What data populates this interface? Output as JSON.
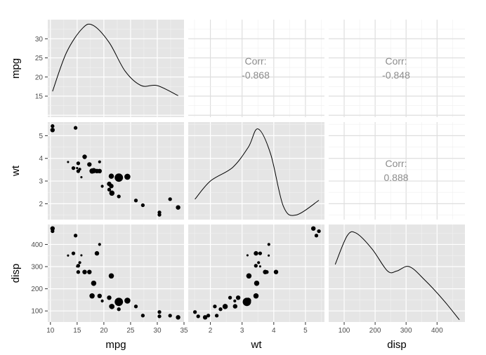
{
  "variables": [
    "mpg",
    "wt",
    "disp"
  ],
  "chart_data": {
    "type": "scatter",
    "variables": [
      {
        "name": "mpg",
        "range": [
          9.5,
          35
        ],
        "ticks": [
          10,
          15,
          20,
          25,
          30,
          35
        ],
        "ytick_labels": [
          15,
          20,
          25,
          30
        ]
      },
      {
        "name": "wt",
        "range": [
          1.3,
          5.6
        ],
        "ticks": [
          2,
          3,
          4,
          5
        ]
      },
      {
        "name": "disp",
        "range": [
          50,
          490
        ],
        "ticks": [
          100,
          200,
          300,
          400
        ]
      }
    ],
    "density": {
      "mpg": {
        "x": [
          10.4,
          13,
          16,
          18,
          21,
          24,
          27,
          30,
          33.9
        ],
        "y": [
          0.018,
          0.045,
          0.062,
          0.064,
          0.052,
          0.032,
          0.022,
          0.022,
          0.015
        ],
        "yrange": [
          0.0,
          0.068
        ]
      },
      "wt": {
        "x": [
          1.513,
          2,
          2.7,
          3.2,
          3.5,
          3.9,
          4.3,
          4.7,
          5.424
        ],
        "y": [
          0.09,
          0.17,
          0.23,
          0.32,
          0.4,
          0.29,
          0.06,
          0.02,
          0.085
        ],
        "yrange": [
          0.0,
          0.43
        ]
      },
      "disp": {
        "x": [
          71.1,
          110,
          140,
          190,
          240,
          270,
          310,
          360,
          420,
          472
        ],
        "y": [
          0.0026,
          0.0039,
          0.004,
          0.0033,
          0.0023,
          0.0023,
          0.0025,
          0.0019,
          0.001,
          0.0001
        ],
        "yrange": [
          0.0,
          0.0044
        ]
      }
    },
    "correlations": [
      {
        "pair": [
          "mpg",
          "wt"
        ],
        "label": "Corr:",
        "value": "-0.868"
      },
      {
        "pair": [
          "mpg",
          "disp"
        ],
        "label": "Corr:",
        "value": "-0.848"
      },
      {
        "pair": [
          "wt",
          "disp"
        ],
        "label": "Corr:",
        "value": "0.888"
      }
    ],
    "points": [
      {
        "mpg": 21.0,
        "wt": 2.62,
        "disp": 160.0
      },
      {
        "mpg": 21.0,
        "wt": 2.875,
        "disp": 160.0
      },
      {
        "mpg": 22.8,
        "wt": 2.32,
        "disp": 108.0
      },
      {
        "mpg": 21.4,
        "wt": 3.215,
        "disp": 258.0
      },
      {
        "mpg": 18.7,
        "wt": 3.44,
        "disp": 360.0
      },
      {
        "mpg": 18.1,
        "wt": 3.46,
        "disp": 225.0
      },
      {
        "mpg": 14.3,
        "wt": 3.57,
        "disp": 360.0
      },
      {
        "mpg": 24.4,
        "wt": 3.19,
        "disp": 146.7
      },
      {
        "mpg": 22.8,
        "wt": 3.15,
        "disp": 140.8
      },
      {
        "mpg": 19.2,
        "wt": 3.44,
        "disp": 167.6
      },
      {
        "mpg": 17.8,
        "wt": 3.44,
        "disp": 167.6
      },
      {
        "mpg": 16.4,
        "wt": 4.07,
        "disp": 275.8
      },
      {
        "mpg": 17.3,
        "wt": 3.73,
        "disp": 275.8
      },
      {
        "mpg": 15.2,
        "wt": 3.78,
        "disp": 275.8
      },
      {
        "mpg": 10.4,
        "wt": 5.25,
        "disp": 472.0
      },
      {
        "mpg": 10.4,
        "wt": 5.424,
        "disp": 460.0
      },
      {
        "mpg": 14.7,
        "wt": 5.345,
        "disp": 440.0
      },
      {
        "mpg": 32.4,
        "wt": 2.2,
        "disp": 78.7
      },
      {
        "mpg": 30.4,
        "wt": 1.615,
        "disp": 75.7
      },
      {
        "mpg": 33.9,
        "wt": 1.835,
        "disp": 71.1
      },
      {
        "mpg": 21.5,
        "wt": 2.465,
        "disp": 120.1
      },
      {
        "mpg": 15.5,
        "wt": 3.52,
        "disp": 318.0
      },
      {
        "mpg": 15.2,
        "wt": 3.435,
        "disp": 304.0
      },
      {
        "mpg": 13.3,
        "wt": 3.84,
        "disp": 350.0
      },
      {
        "mpg": 19.2,
        "wt": 3.845,
        "disp": 400.0
      },
      {
        "mpg": 27.3,
        "wt": 1.935,
        "disp": 79.0
      },
      {
        "mpg": 26.0,
        "wt": 2.14,
        "disp": 120.3
      },
      {
        "mpg": 30.4,
        "wt": 1.513,
        "disp": 95.1
      },
      {
        "mpg": 15.8,
        "wt": 3.17,
        "disp": 351.0
      },
      {
        "mpg": 19.7,
        "wt": 2.77,
        "disp": 145.0
      },
      {
        "mpg": 15.0,
        "wt": 3.57,
        "disp": 301.0
      },
      {
        "mpg": 21.4,
        "wt": 2.78,
        "disp": 121.0
      }
    ],
    "point_sizes": [
      3,
      4,
      3,
      5,
      4,
      5,
      3,
      6,
      9,
      4,
      5,
      4,
      4,
      3,
      4,
      3,
      3,
      3,
      3,
      4,
      5,
      2,
      3,
      1,
      2,
      3,
      3,
      3,
      1,
      2,
      1,
      4
    ],
    "grid": true,
    "colors": {
      "panel": "#e5e5e5",
      "grid": "#ffffff",
      "point": "#000000",
      "line": "#000000",
      "corr": "#8c8c8c"
    }
  }
}
